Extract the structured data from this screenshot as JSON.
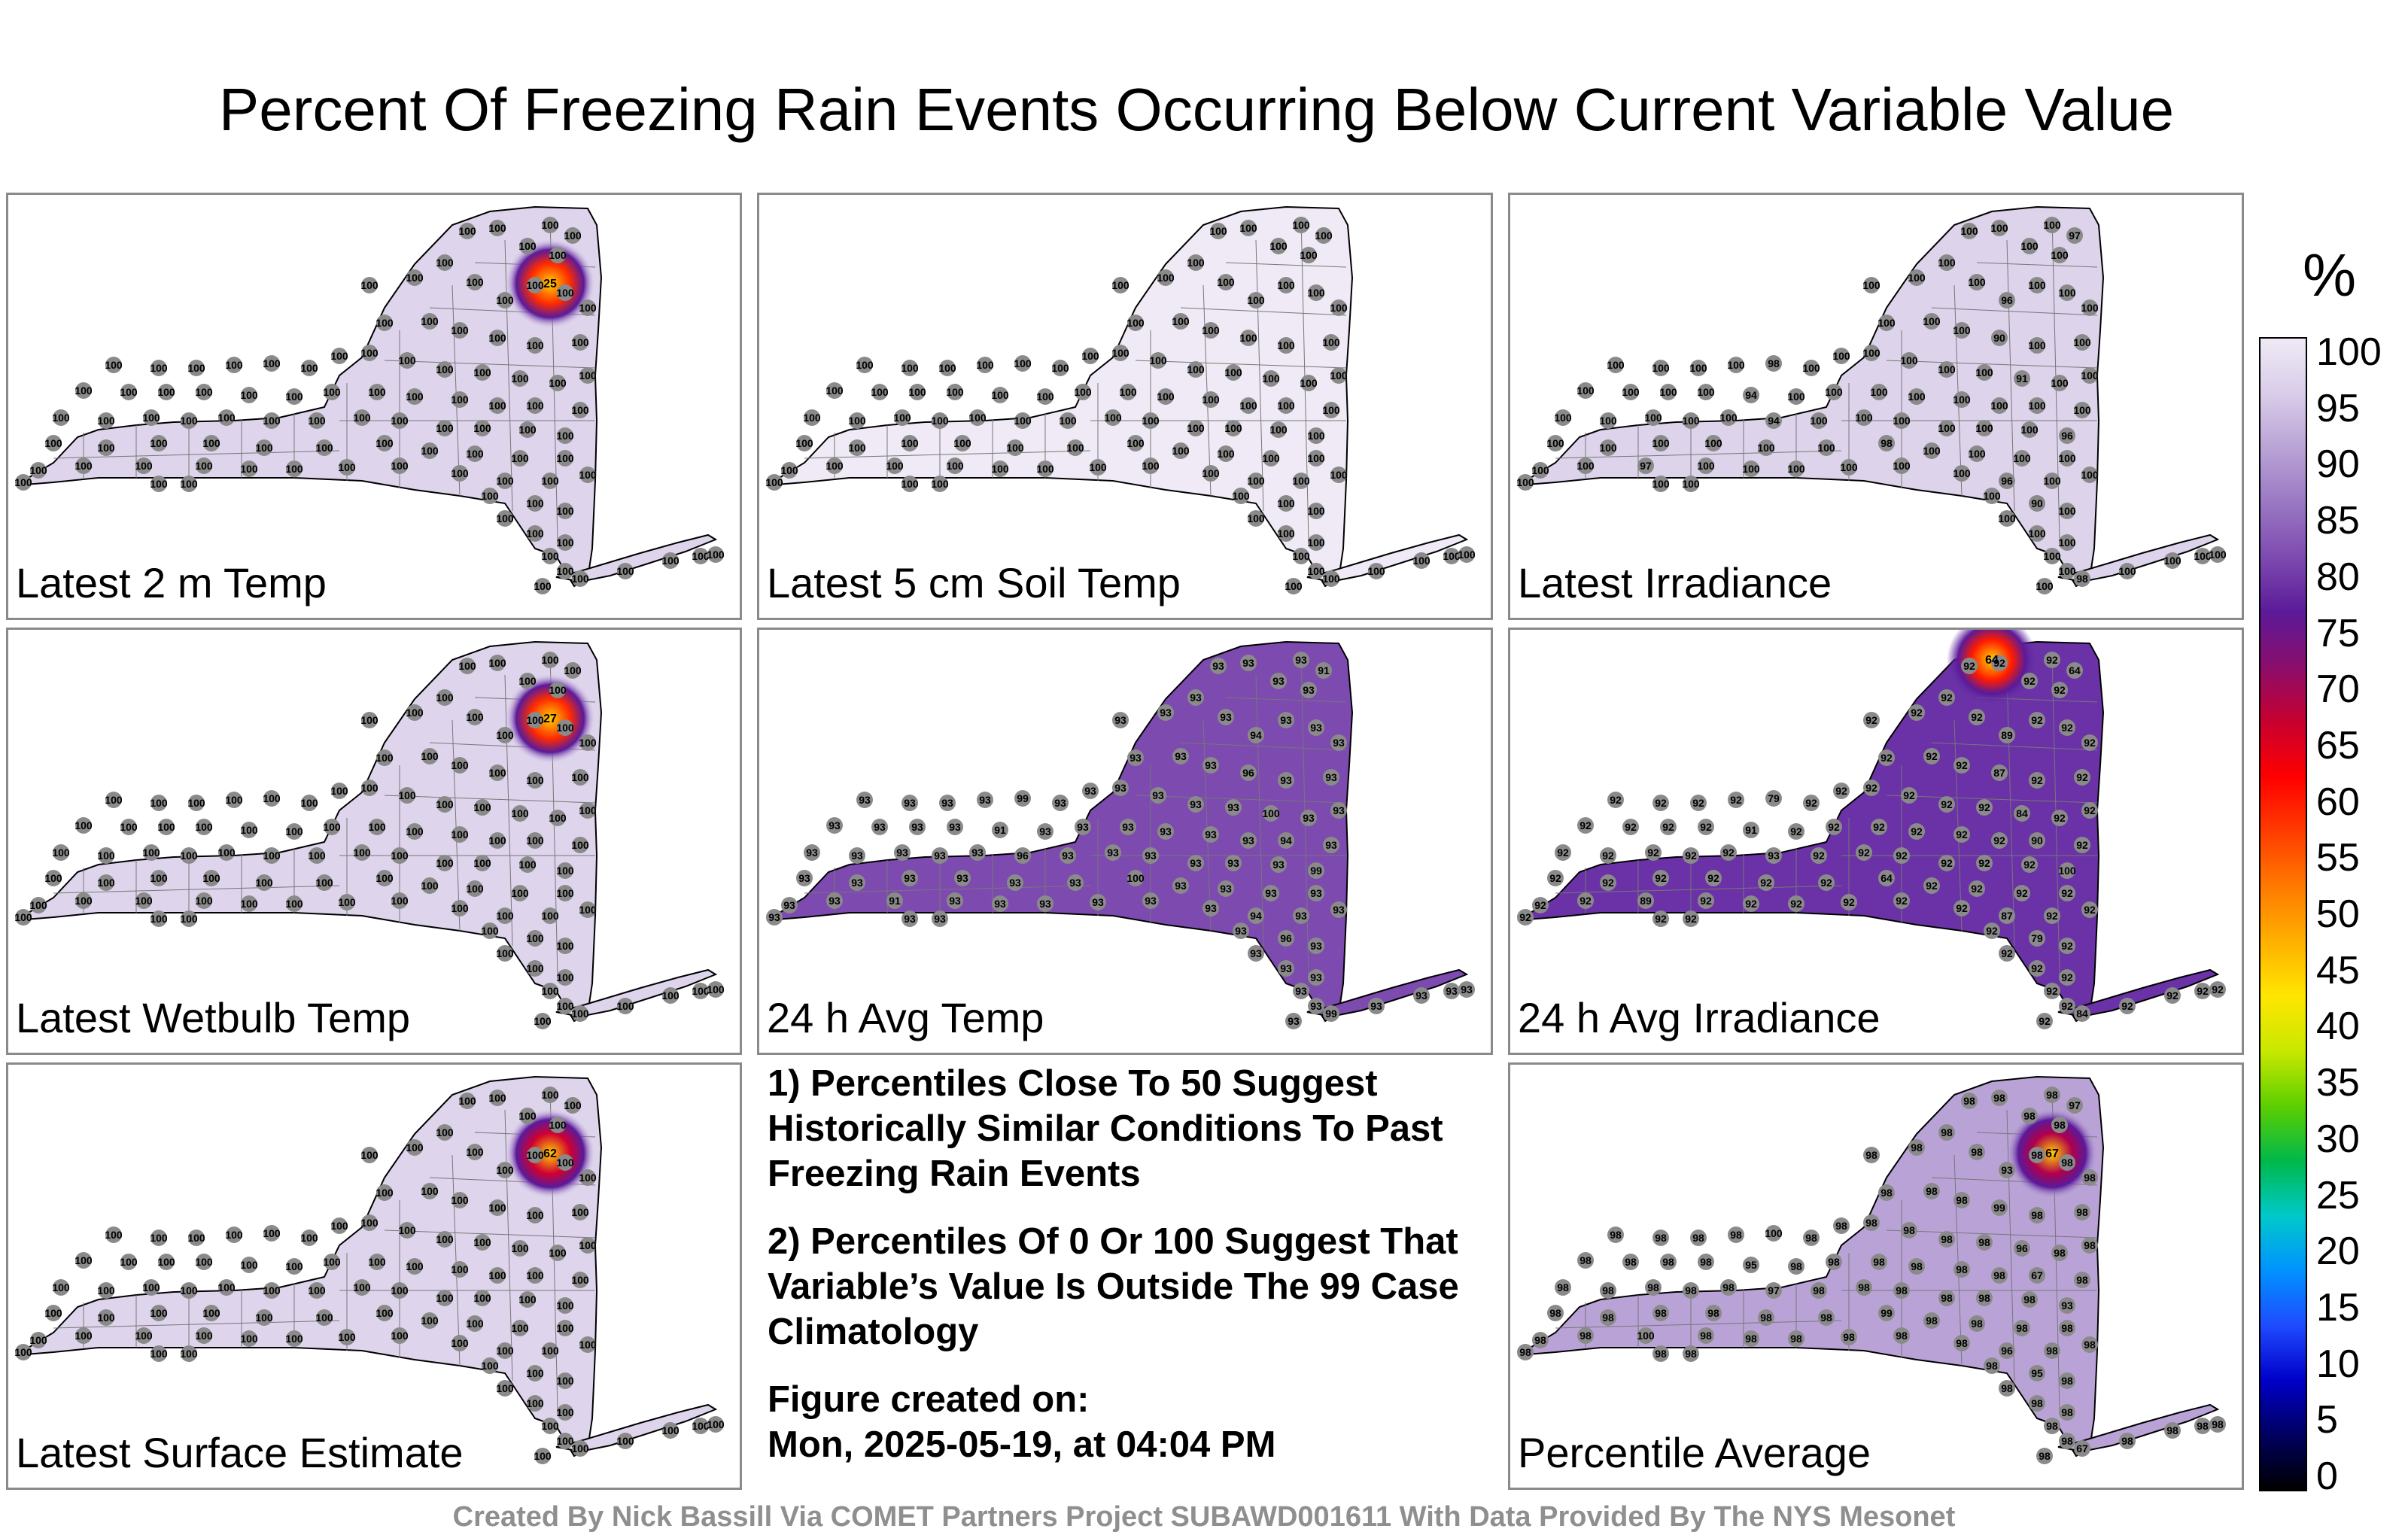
{
  "title": "Percent Of Freezing Rain Events Occurring Below Current Variable Value",
  "panels": [
    {
      "label": "Latest 2 m Temp",
      "fill": "#ded4ec",
      "station_value": "100",
      "hotspot": {
        "value": "25",
        "color": "#ff2a00"
      }
    },
    {
      "label": "Latest 5 cm Soil Temp",
      "fill": "#efeaf5",
      "station_value": "100"
    },
    {
      "label": "Latest Irradiance",
      "fill": "#ddd3eb",
      "station_value": "100",
      "extra_values": [
        "97",
        "96",
        "90",
        "98",
        "91",
        "94",
        "100",
        "94",
        "96",
        "98"
      ]
    },
    {
      "label": "Latest Wetbulb Temp",
      "fill": "#ded4ec",
      "station_value": "100",
      "hotspot": {
        "value": "27",
        "color": "#ff2a00"
      }
    },
    {
      "label": "24 h Avg Temp",
      "fill": "#7d4ab0",
      "station_value": "93",
      "extra_values": [
        "91",
        "94",
        "96",
        "99",
        "100"
      ]
    },
    {
      "label": "24 h Avg Irradiance",
      "fill": "#6a32a6",
      "station_value": "92",
      "extra_values": [
        "64",
        "89",
        "87",
        "79",
        "84",
        "91",
        "90",
        "93",
        "100"
      ],
      "hotspot": {
        "value": "64",
        "color": "#ff1a00"
      }
    },
    {
      "label": "Latest Surface Estimate",
      "fill": "#ded4ec",
      "station_value": "100",
      "hotspot": {
        "value": "62",
        "color": "#d00030"
      }
    },
    {
      "label": "Percentile Average",
      "fill": "#b9a3d6",
      "station_value": "98",
      "extra_values": [
        "97",
        "93",
        "99",
        "100",
        "96",
        "95",
        "67"
      ],
      "hotspot": {
        "value": "67",
        "color": "#b0004a"
      }
    }
  ],
  "notes": {
    "note1": "1) Percentiles Close To 50 Suggest Historically Similar Conditions To Past Freezing Rain Events",
    "note2": "2) Percentiles Of 0 Or 100 Suggest That Variable’s Value Is Outside The 99 Case Climatology",
    "created_label": "Figure created on:",
    "created_value": "Mon, 2025-05-19, at 04:04 PM"
  },
  "colorbar": {
    "unit": "%",
    "ticks": [
      "100",
      "95",
      "90",
      "85",
      "80",
      "75",
      "70",
      "65",
      "60",
      "55",
      "50",
      "45",
      "40",
      "35",
      "30",
      "25",
      "20",
      "15",
      "10",
      "5",
      "0"
    ],
    "colors": [
      "#efeaf5",
      "#d9cde9",
      "#b9a3d6",
      "#9a77c3",
      "#7d4ab0",
      "#5c1a99",
      "#8b0d6b",
      "#c8002f",
      "#ff0000",
      "#ff3d00",
      "#ff7a00",
      "#ffb000",
      "#ffe600",
      "#c8e800",
      "#5ccf00",
      "#00b84a",
      "#00c9c9",
      "#0093ff",
      "#1f4bff",
      "#0000c8",
      "#000060",
      "#000000"
    ]
  },
  "footer": "Created By Nick Bassill Via COMET Partners Project SUBAWD001611 With Data Provided By The NYS Mesonet"
}
